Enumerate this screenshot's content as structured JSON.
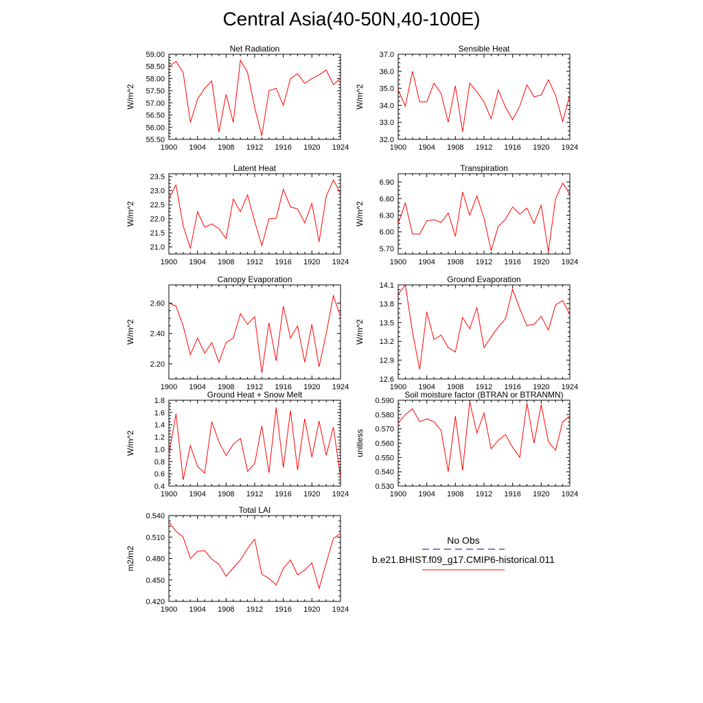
{
  "title": "Central Asia(40-50N,40-100E)",
  "colors": {
    "series": "#ff0000",
    "obs_line": "#00008b",
    "axis": "#000000"
  },
  "legend": {
    "obs_label": "No Obs",
    "model_label": "b.e21.BHIST.f09_g17.CMIP6-historical.011"
  },
  "chart_data": [
    {
      "type": "line",
      "title": "Net Radiation",
      "ylabel": "W/m^2",
      "xlabel": "",
      "xlim": [
        1900,
        1924
      ],
      "ylim": [
        55.5,
        59.0
      ],
      "xticks": [
        1900,
        1904,
        1908,
        1912,
        1916,
        1920,
        1924
      ],
      "yticks": [
        55.5,
        56.0,
        56.5,
        57.0,
        57.5,
        58.0,
        58.5,
        59.0
      ],
      "ydec": 2,
      "x": [
        1900,
        1901,
        1902,
        1903,
        1904,
        1905,
        1906,
        1907,
        1908,
        1909,
        1910,
        1911,
        1912,
        1913,
        1914,
        1915,
        1916,
        1917,
        1918,
        1919,
        1920,
        1921,
        1922,
        1923,
        1924
      ],
      "y": [
        58.5,
        58.7,
        58.25,
        56.2,
        57.15,
        57.6,
        57.9,
        55.8,
        57.35,
        56.2,
        58.75,
        58.25,
        56.8,
        55.65,
        57.5,
        57.6,
        56.9,
        58.0,
        58.2,
        57.8,
        58.0,
        58.15,
        58.35,
        57.75,
        58.0
      ]
    },
    {
      "type": "line",
      "title": "Sensible Heat",
      "ylabel": "W/m^2",
      "xlabel": "",
      "xlim": [
        1900,
        1924
      ],
      "ylim": [
        32.0,
        37.0
      ],
      "xticks": [
        1900,
        1904,
        1908,
        1912,
        1916,
        1920,
        1924
      ],
      "yticks": [
        32.0,
        33.0,
        34.0,
        35.0,
        36.0,
        37.0
      ],
      "ydec": 1,
      "x": [
        1900,
        1901,
        1902,
        1903,
        1904,
        1905,
        1906,
        1907,
        1908,
        1909,
        1910,
        1911,
        1912,
        1913,
        1914,
        1915,
        1916,
        1917,
        1918,
        1919,
        1920,
        1921,
        1922,
        1923,
        1924
      ],
      "y": [
        34.9,
        33.95,
        36.0,
        34.2,
        34.2,
        35.3,
        34.7,
        33.0,
        35.15,
        32.45,
        35.3,
        34.8,
        34.2,
        33.2,
        34.9,
        33.9,
        33.15,
        33.95,
        35.2,
        34.5,
        34.6,
        35.5,
        34.6,
        33.05,
        34.6
      ]
    },
    {
      "type": "line",
      "title": "Latent Heat",
      "ylabel": "W/m^2",
      "xlabel": "",
      "xlim": [
        1900,
        1924
      ],
      "ylim": [
        20.75,
        23.6
      ],
      "xticks": [
        1900,
        1904,
        1908,
        1912,
        1916,
        1920,
        1924
      ],
      "yticks": [
        21.0,
        21.5,
        22.0,
        22.5,
        23.0,
        23.5
      ],
      "ydec": 1,
      "x": [
        1900,
        1901,
        1902,
        1903,
        1904,
        1905,
        1906,
        1907,
        1908,
        1909,
        1910,
        1911,
        1912,
        1913,
        1914,
        1915,
        1916,
        1917,
        1918,
        1919,
        1920,
        1921,
        1922,
        1923,
        1924
      ],
      "y": [
        22.7,
        23.2,
        21.75,
        20.95,
        22.25,
        21.7,
        21.82,
        21.65,
        21.3,
        22.7,
        22.25,
        22.85,
        21.9,
        21.05,
        22.0,
        22.02,
        23.05,
        22.42,
        22.35,
        21.85,
        22.55,
        21.18,
        22.8,
        23.38,
        22.9
      ]
    },
    {
      "type": "line",
      "title": "Transpiration",
      "ylabel": "W/m^2",
      "xlabel": "",
      "xlim": [
        1900,
        1924
      ],
      "ylim": [
        5.6,
        7.05
      ],
      "xticks": [
        1900,
        1904,
        1908,
        1912,
        1916,
        1920,
        1924
      ],
      "yticks": [
        5.7,
        6.0,
        6.3,
        6.6,
        6.9
      ],
      "ydec": 2,
      "x": [
        1900,
        1901,
        1902,
        1903,
        1904,
        1905,
        1906,
        1907,
        1908,
        1909,
        1910,
        1911,
        1912,
        1913,
        1914,
        1915,
        1916,
        1917,
        1918,
        1919,
        1920,
        1921,
        1922,
        1923,
        1924
      ],
      "y": [
        6.15,
        6.52,
        5.96,
        5.96,
        6.2,
        6.22,
        6.17,
        6.34,
        5.92,
        6.72,
        6.3,
        6.65,
        6.25,
        5.66,
        6.1,
        6.23,
        6.45,
        6.32,
        6.43,
        6.15,
        6.48,
        5.64,
        6.6,
        6.88,
        6.68
      ]
    },
    {
      "type": "line",
      "title": "Canopy Evaporation",
      "ylabel": "W/m^2",
      "xlabel": "",
      "xlim": [
        1900,
        1924
      ],
      "ylim": [
        2.1,
        2.72
      ],
      "xticks": [
        1900,
        1904,
        1908,
        1912,
        1916,
        1920,
        1924
      ],
      "yticks": [
        2.2,
        2.4,
        2.6
      ],
      "ydec": 2,
      "x": [
        1900,
        1901,
        1902,
        1903,
        1904,
        1905,
        1906,
        1907,
        1908,
        1909,
        1910,
        1911,
        1912,
        1913,
        1914,
        1915,
        1916,
        1917,
        1918,
        1919,
        1920,
        1921,
        1922,
        1923,
        1924
      ],
      "y": [
        2.6,
        2.58,
        2.45,
        2.26,
        2.37,
        2.27,
        2.34,
        2.21,
        2.34,
        2.37,
        2.53,
        2.46,
        2.51,
        2.14,
        2.47,
        2.22,
        2.58,
        2.37,
        2.45,
        2.21,
        2.46,
        2.18,
        2.4,
        2.65,
        2.51
      ]
    },
    {
      "type": "line",
      "title": "Ground Evaporation",
      "ylabel": "W/m^2",
      "xlabel": "",
      "xlim": [
        1900,
        1924
      ],
      "ylim": [
        12.6,
        14.1
      ],
      "xticks": [
        1900,
        1904,
        1908,
        1912,
        1916,
        1920,
        1924
      ],
      "yticks": [
        12.6,
        12.9,
        13.2,
        13.5,
        13.8,
        14.1
      ],
      "ydec": 1,
      "x": [
        1900,
        1901,
        1902,
        1903,
        1904,
        1905,
        1906,
        1907,
        1908,
        1909,
        1910,
        1911,
        1912,
        1913,
        1914,
        1915,
        1916,
        1917,
        1918,
        1919,
        1920,
        1921,
        1922,
        1923,
        1924
      ],
      "y": [
        13.95,
        14.1,
        13.35,
        12.75,
        13.67,
        13.23,
        13.3,
        13.1,
        13.03,
        13.58,
        13.4,
        13.74,
        13.1,
        13.27,
        13.43,
        13.56,
        14.03,
        13.72,
        13.45,
        13.47,
        13.6,
        13.38,
        13.78,
        13.85,
        13.63
      ]
    },
    {
      "type": "line",
      "title": "Ground Heat + Snow Melt",
      "ylabel": "W/m^2",
      "xlabel": "",
      "xlim": [
        1900,
        1924
      ],
      "ylim": [
        0.4,
        1.8
      ],
      "xticks": [
        1900,
        1904,
        1908,
        1912,
        1916,
        1920,
        1924
      ],
      "yticks": [
        0.4,
        0.6,
        0.8,
        1.0,
        1.2,
        1.4,
        1.6,
        1.8
      ],
      "ydec": 1,
      "x": [
        1900,
        1901,
        1902,
        1903,
        1904,
        1905,
        1906,
        1907,
        1908,
        1909,
        1910,
        1911,
        1912,
        1913,
        1914,
        1915,
        1916,
        1917,
        1918,
        1919,
        1920,
        1921,
        1922,
        1923,
        1924
      ],
      "y": [
        0.92,
        1.58,
        0.5,
        1.06,
        0.72,
        0.61,
        1.45,
        1.12,
        0.9,
        1.08,
        1.18,
        0.64,
        0.77,
        1.38,
        0.62,
        1.68,
        0.7,
        1.63,
        0.66,
        1.5,
        0.87,
        1.46,
        0.9,
        1.36,
        0.55
      ]
    },
    {
      "type": "line",
      "title": "Soil moisture factor (BTRAN or BTRANMN)",
      "ylabel": "unitless",
      "xlabel": "",
      "xlim": [
        1900,
        1924
      ],
      "ylim": [
        0.53,
        0.59
      ],
      "xticks": [
        1900,
        1904,
        1908,
        1912,
        1916,
        1920,
        1924
      ],
      "yticks": [
        0.53,
        0.54,
        0.55,
        0.56,
        0.57,
        0.58,
        0.59
      ],
      "ydec": 3,
      "x": [
        1900,
        1901,
        1902,
        1903,
        1904,
        1905,
        1906,
        1907,
        1908,
        1909,
        1910,
        1911,
        1912,
        1913,
        1914,
        1915,
        1916,
        1917,
        1918,
        1919,
        1920,
        1921,
        1922,
        1923,
        1924
      ],
      "y": [
        0.574,
        0.58,
        0.584,
        0.575,
        0.577,
        0.575,
        0.569,
        0.54,
        0.579,
        0.541,
        0.589,
        0.567,
        0.581,
        0.556,
        0.562,
        0.566,
        0.557,
        0.55,
        0.588,
        0.56,
        0.587,
        0.561,
        0.555,
        0.575,
        0.579
      ]
    },
    {
      "type": "line",
      "title": "Total LAI",
      "ylabel": "m2/m2",
      "xlabel": "",
      "xlim": [
        1900,
        1924
      ],
      "ylim": [
        0.42,
        0.54
      ],
      "xticks": [
        1900,
        1904,
        1908,
        1912,
        1916,
        1920,
        1924
      ],
      "yticks": [
        0.42,
        0.45,
        0.48,
        0.51,
        0.54
      ],
      "ydec": 3,
      "x": [
        1900,
        1901,
        1902,
        1903,
        1904,
        1905,
        1906,
        1907,
        1908,
        1909,
        1910,
        1911,
        1912,
        1913,
        1914,
        1915,
        1916,
        1917,
        1918,
        1919,
        1920,
        1921,
        1922,
        1923,
        1924
      ],
      "y": [
        0.531,
        0.518,
        0.51,
        0.48,
        0.49,
        0.491,
        0.479,
        0.472,
        0.455,
        0.467,
        0.478,
        0.494,
        0.507,
        0.458,
        0.452,
        0.443,
        0.466,
        0.478,
        0.457,
        0.464,
        0.474,
        0.438,
        0.474,
        0.508,
        0.515
      ]
    }
  ]
}
